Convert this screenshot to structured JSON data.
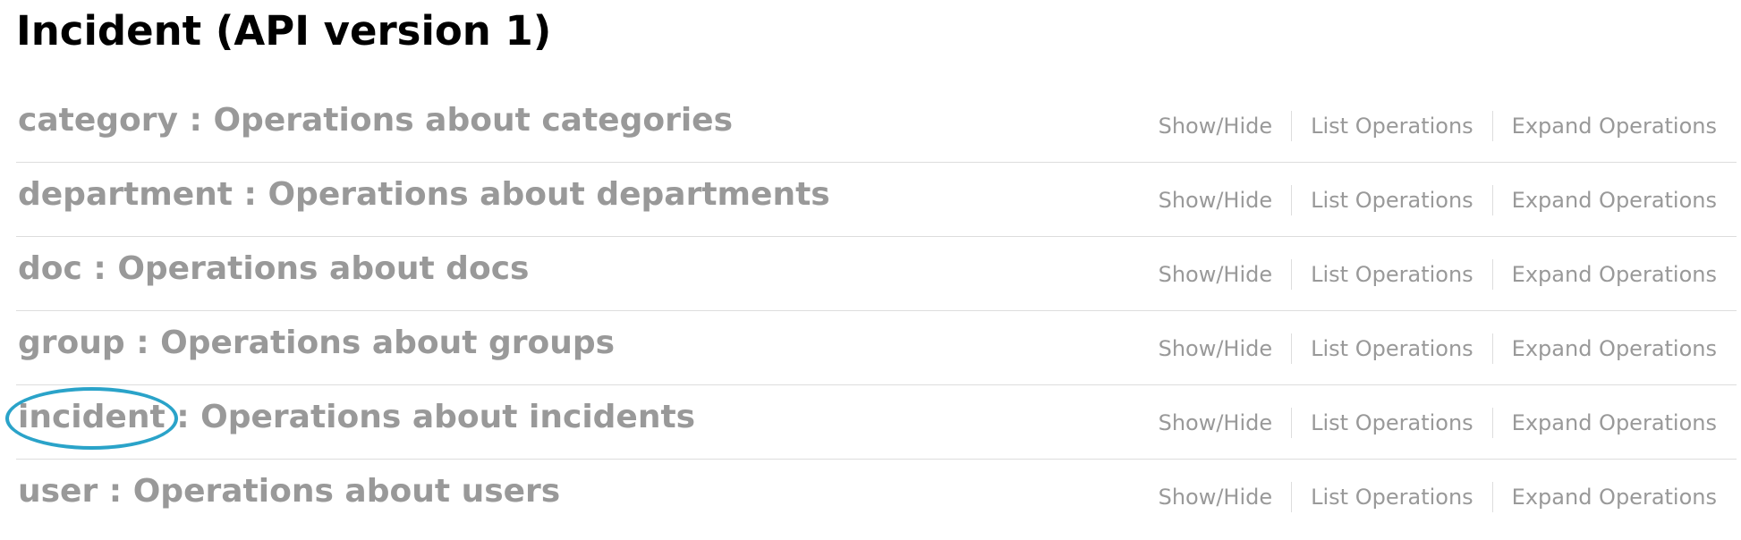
{
  "page": {
    "title": "Incident (API version 1)"
  },
  "resources": [
    {
      "name": "category",
      "separator": " : ",
      "description": "Operations about categories",
      "highlighted": false
    },
    {
      "name": "department",
      "separator": " : ",
      "description": "Operations about departments",
      "highlighted": false
    },
    {
      "name": "doc",
      "separator": " : ",
      "description": "Operations about docs",
      "highlighted": false
    },
    {
      "name": "group",
      "separator": " : ",
      "description": "Operations about groups",
      "highlighted": false
    },
    {
      "name": "incident",
      "separator": " : ",
      "description": "Operations about incidents",
      "highlighted": true
    },
    {
      "name": "user",
      "separator": " : ",
      "description": "Operations about users",
      "highlighted": false
    }
  ],
  "operations": {
    "show_hide": "Show/Hide",
    "list": "List Operations",
    "expand": "Expand Operations"
  },
  "colors": {
    "title": "#000000",
    "resource_text": "#999999",
    "divider": "#dddddd",
    "highlight_ring": "#2aa3c9"
  }
}
